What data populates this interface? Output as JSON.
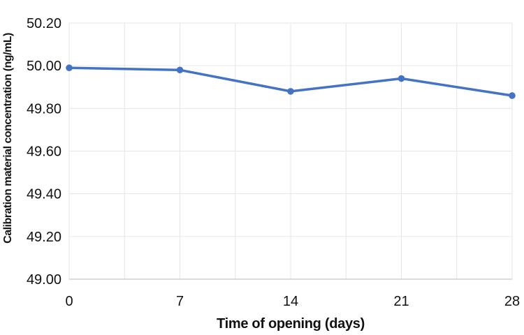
{
  "chart_data": {
    "type": "line",
    "title": "",
    "xlabel": "Time of opening (days)",
    "ylabel": "Calibration material concentration (ng/mL)",
    "x": [
      0,
      7,
      14,
      21,
      28
    ],
    "series": [
      {
        "name": "Calibration material concentration (ng/mL)",
        "values": [
          49.99,
          49.98,
          49.88,
          49.94,
          49.86
        ]
      }
    ],
    "xlim": [
      0,
      28
    ],
    "ylim": [
      49.0,
      50.2
    ],
    "x_tick_labels": [
      "0",
      "7",
      "14",
      "21",
      "28"
    ],
    "x_tick_values": [
      0,
      7,
      14,
      21,
      28
    ],
    "x_gridline_step_days": 3.5,
    "y_tick_values": [
      49.0,
      49.2,
      49.4,
      49.6,
      49.8,
      50.0,
      50.2
    ],
    "y_tick_labels": [
      "49.00",
      "49.20",
      "49.40",
      "49.60",
      "49.80",
      "50.00",
      "50.20"
    ],
    "grid": true,
    "legend": "none",
    "colors": {
      "series": "#4472C4",
      "gridline": "#e6e6e6",
      "axis_line": "#cfcfcf",
      "text": "#111111",
      "background": "#ffffff"
    }
  }
}
